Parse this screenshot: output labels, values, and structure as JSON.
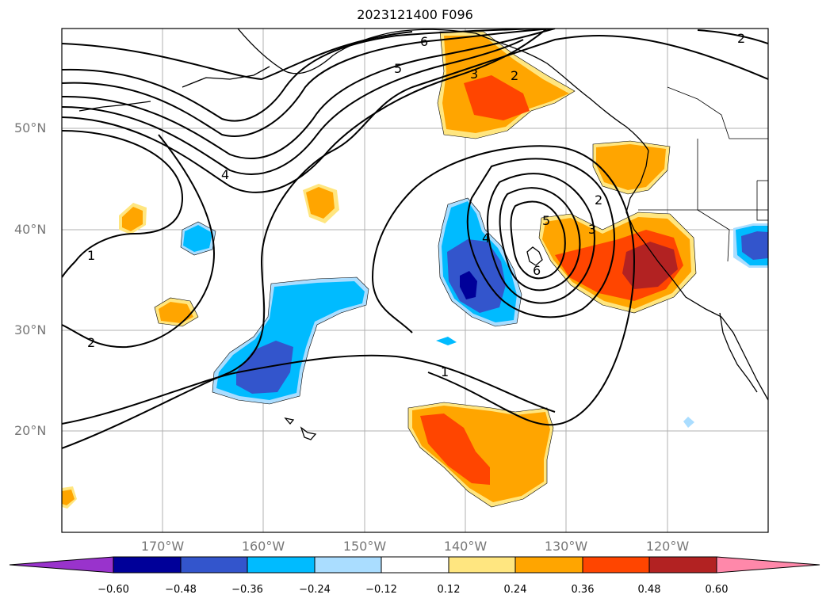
{
  "title": "2023121400 F096",
  "map": {
    "lat_labels": [
      "50°N",
      "40°N",
      "30°N",
      "20°N"
    ],
    "lon_labels": [
      "170°W",
      "160°W",
      "150°W",
      "140°W",
      "130°W",
      "120°W"
    ],
    "contour_labels": [
      "6",
      "5",
      "3",
      "2",
      "2",
      "4",
      "1",
      "2",
      "1",
      "4",
      "5",
      "6",
      "3",
      "2"
    ]
  },
  "colorbar": {
    "ticks": [
      "−0.60",
      "−0.48",
      "−0.36",
      "−0.24",
      "−0.12",
      "0.12",
      "0.24",
      "0.36",
      "0.48",
      "0.60"
    ],
    "colors": [
      "#9933cc",
      "#000099",
      "#3355cc",
      "#00bbff",
      "#aaddff",
      "#ffffff",
      "#ffe680",
      "#ffa500",
      "#ff4500",
      "#b22222",
      "#ff88aa"
    ]
  }
}
